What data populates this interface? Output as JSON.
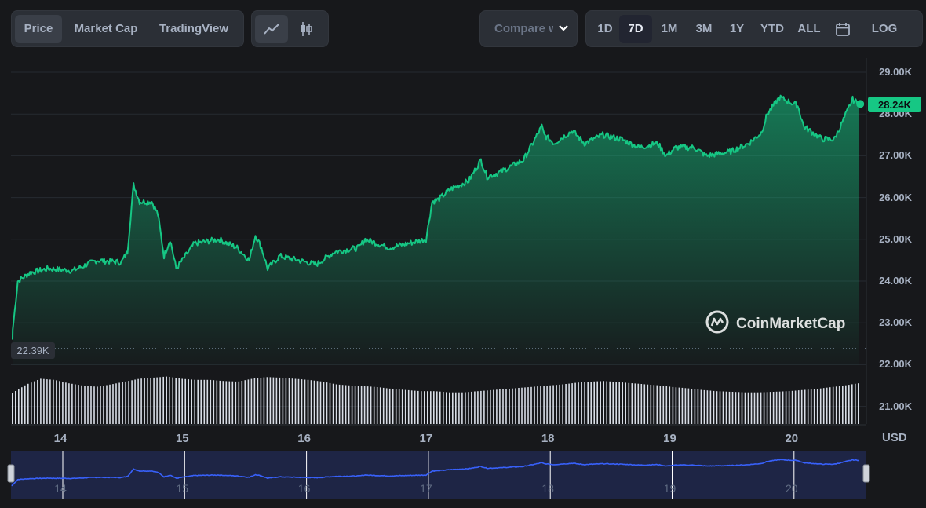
{
  "toolbar": {
    "view_tabs": [
      {
        "label": "Price",
        "active": true
      },
      {
        "label": "Market Cap",
        "active": false
      },
      {
        "label": "TradingView",
        "active": false
      }
    ],
    "chart_type_icons": [
      "line-chart-icon",
      "candlestick-icon"
    ],
    "compare_label": "Compare with",
    "ranges": [
      {
        "label": "1D",
        "active": false
      },
      {
        "label": "7D",
        "active": true
      },
      {
        "label": "1M",
        "active": false
      },
      {
        "label": "3M",
        "active": false
      },
      {
        "label": "1Y",
        "active": false
      },
      {
        "label": "YTD",
        "active": false
      },
      {
        "label": "ALL",
        "active": false
      }
    ],
    "calendar_icon": "calendar-icon",
    "log_label": "LOG"
  },
  "watermark": "CoinMarketCap",
  "currency": "USD",
  "colors": {
    "line": "#16c784",
    "fill_top": "#16c784",
    "background": "#17181b",
    "navigator_fill": "#1e2545",
    "navigator_line": "#3861fb"
  },
  "chart_data": {
    "type": "area",
    "y_ticks": [
      "29.00K",
      "28.00K",
      "27.00K",
      "26.00K",
      "25.00K",
      "24.00K",
      "23.00K",
      "22.00K",
      "21.00K"
    ],
    "ylim": [
      20600,
      29300
    ],
    "x_ticks": [
      "14",
      "15",
      "16",
      "17",
      "18",
      "19",
      "20"
    ],
    "current_price_label": "28.24K",
    "current_price": 28240,
    "start_price_label": "22.39K",
    "start_price": 22390,
    "series": [
      {
        "x": [
          13.6,
          13.65,
          13.75,
          13.9,
          14.1,
          14.3,
          14.5,
          14.55,
          14.6,
          14.65,
          14.75,
          14.8,
          14.85,
          14.9,
          14.95,
          15.1,
          15.3,
          15.45,
          15.55,
          15.6,
          15.65,
          15.7,
          15.8,
          15.95,
          16.1,
          16.25,
          16.45,
          16.5,
          16.6,
          16.7,
          16.85,
          17.0,
          17.05,
          17.1,
          17.2,
          17.35,
          17.45,
          17.5,
          17.6,
          17.8,
          17.95,
          17.97,
          18.05,
          18.2,
          18.3,
          18.45,
          18.6,
          18.75,
          18.9,
          18.97,
          19.05,
          19.2,
          19.3,
          19.5,
          19.65,
          19.75,
          19.8,
          19.9,
          20.05,
          20.1,
          20.15,
          20.25,
          20.35,
          20.4,
          20.5,
          20.55
        ],
        "values": [
          22600,
          24000,
          24200,
          24300,
          24250,
          24500,
          24450,
          24700,
          26300,
          25900,
          25900,
          25600,
          24600,
          25000,
          24300,
          24900,
          25000,
          24800,
          24500,
          25100,
          24800,
          24300,
          24600,
          24500,
          24400,
          24700,
          24800,
          25000,
          24900,
          24800,
          24900,
          25000,
          25900,
          25950,
          26200,
          26400,
          26900,
          26500,
          26600,
          26900,
          27700,
          27500,
          27300,
          27600,
          27300,
          27500,
          27400,
          27200,
          27300,
          27000,
          27200,
          27200,
          27000,
          27100,
          27300,
          27550,
          28000,
          28400,
          28200,
          27700,
          27600,
          27400,
          27400,
          27700,
          28350,
          28240
        ]
      }
    ],
    "volume_bars": [
      0.55,
      0.7,
      0.8,
      0.78,
      0.72,
      0.68,
      0.66,
      0.7,
      0.75,
      0.8,
      0.82,
      0.84,
      0.8,
      0.78,
      0.78,
      0.76,
      0.75,
      0.8,
      0.83,
      0.82,
      0.8,
      0.78,
      0.75,
      0.7,
      0.68,
      0.67,
      0.65,
      0.62,
      0.6,
      0.58,
      0.58,
      0.56,
      0.56,
      0.58,
      0.6,
      0.62,
      0.64,
      0.66,
      0.68,
      0.7,
      0.73,
      0.75,
      0.76,
      0.74,
      0.72,
      0.7,
      0.68,
      0.65,
      0.63,
      0.6,
      0.58,
      0.57,
      0.56,
      0.56,
      0.57,
      0.58,
      0.6,
      0.62,
      0.65,
      0.68,
      0.72
    ],
    "navigator_x_ticks": [
      "14",
      "15",
      "16",
      "17",
      "18",
      "19",
      "20"
    ]
  }
}
